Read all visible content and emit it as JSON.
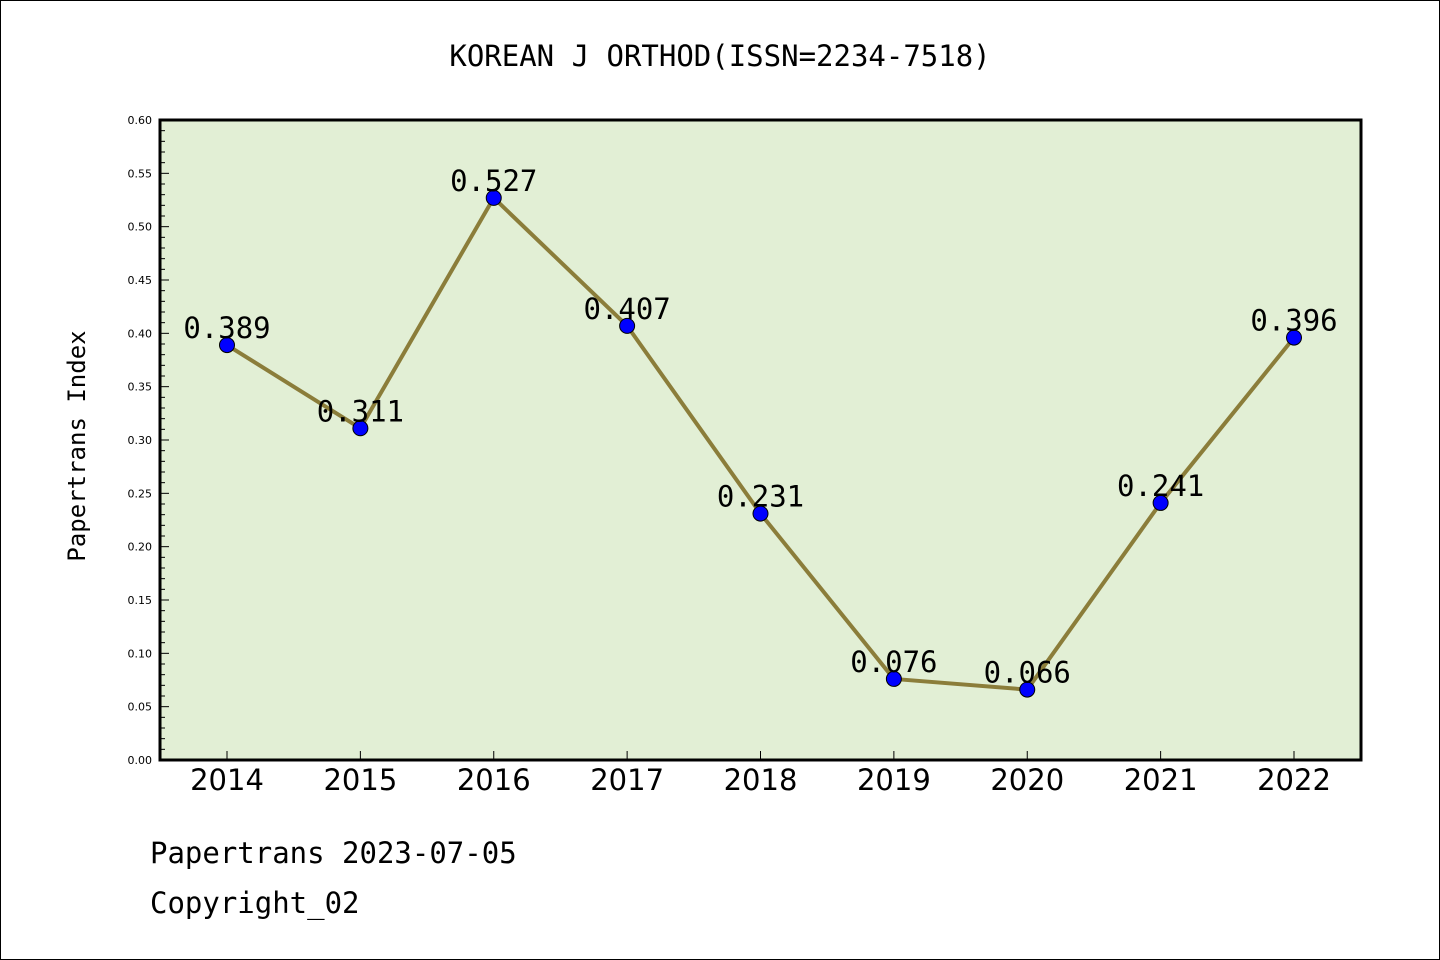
{
  "chart_data": {
    "type": "line",
    "title": "KOREAN J ORTHOD(ISSN=2234-7518)",
    "xlabel": "",
    "ylabel": "Papertrans Index",
    "categories": [
      "2014",
      "2015",
      "2016",
      "2017",
      "2018",
      "2019",
      "2020",
      "2021",
      "2022"
    ],
    "series": [
      {
        "values": [
          0.389,
          0.311,
          0.527,
          0.407,
          0.231,
          0.076,
          0.066,
          0.241,
          0.396
        ],
        "labels": [
          "0.389",
          "0.311",
          "0.527",
          "0.407",
          "0.231",
          "0.076",
          "0.066",
          "0.241",
          "0.396"
        ]
      }
    ],
    "ylim": [
      0,
      0.6
    ],
    "yticks": [
      "0.00",
      "0.05",
      "0.10",
      "0.15",
      "0.20",
      "0.25",
      "0.30",
      "0.35",
      "0.40",
      "0.45",
      "0.50",
      "0.55",
      "0.60"
    ],
    "grid": false,
    "legend": "none",
    "colors": {
      "plot_background": "#e2efd5",
      "line": "#8b7d3a",
      "marker": "#0000ff"
    }
  },
  "footer": {
    "line1": "Papertrans 2023-07-05",
    "line2": "Copyright_02"
  }
}
